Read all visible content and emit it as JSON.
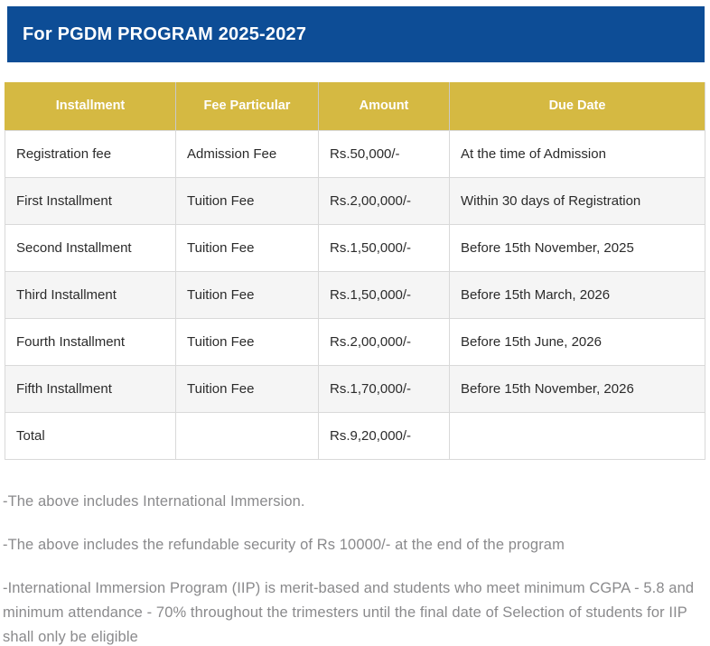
{
  "header": {
    "title": "For PGDM PROGRAM 2025-2027"
  },
  "table": {
    "columns": [
      "Installment",
      "Fee Particular",
      "Amount",
      "Due Date"
    ],
    "rows": [
      [
        "Registration fee",
        "Admission Fee",
        "Rs.50,000/-",
        "At the time of Admission"
      ],
      [
        "First Installment",
        "Tuition Fee",
        "Rs.2,00,000/-",
        "Within 30 days of Registration"
      ],
      [
        "Second Installment",
        "Tuition Fee",
        "Rs.1,50,000/-",
        "Before 15th November, 2025"
      ],
      [
        "Third Installment",
        "Tuition Fee",
        "Rs.1,50,000/-",
        "Before 15th March, 2026"
      ],
      [
        "Fourth Installment",
        "Tuition Fee",
        "Rs.2,00,000/-",
        "Before 15th June, 2026"
      ],
      [
        "Fifth Installment",
        "Tuition Fee",
        "Rs.1,70,000/-",
        "Before 15th November, 2026"
      ],
      [
        "Total",
        "",
        "Rs.9,20,000/-",
        ""
      ]
    ]
  },
  "notes": [
    "-The above includes International Immersion.",
    "-The above includes the refundable security of Rs 10000/- at the end of the program",
    "-International Immersion Program (IIP) is merit-based and students who meet minimum CGPA - 5.8 and minimum attendance - 70% throughout the trimesters until the final date of Selection of students for IIP shall only be eligible"
  ],
  "colors": {
    "header_blue": "#0D4D96",
    "table_header_gold": "#D5B942",
    "row_alt": "#F5F5F5",
    "border": "#D9D9D9",
    "cell_text": "#2B2B2B",
    "note_text": "#8A8A8C"
  }
}
